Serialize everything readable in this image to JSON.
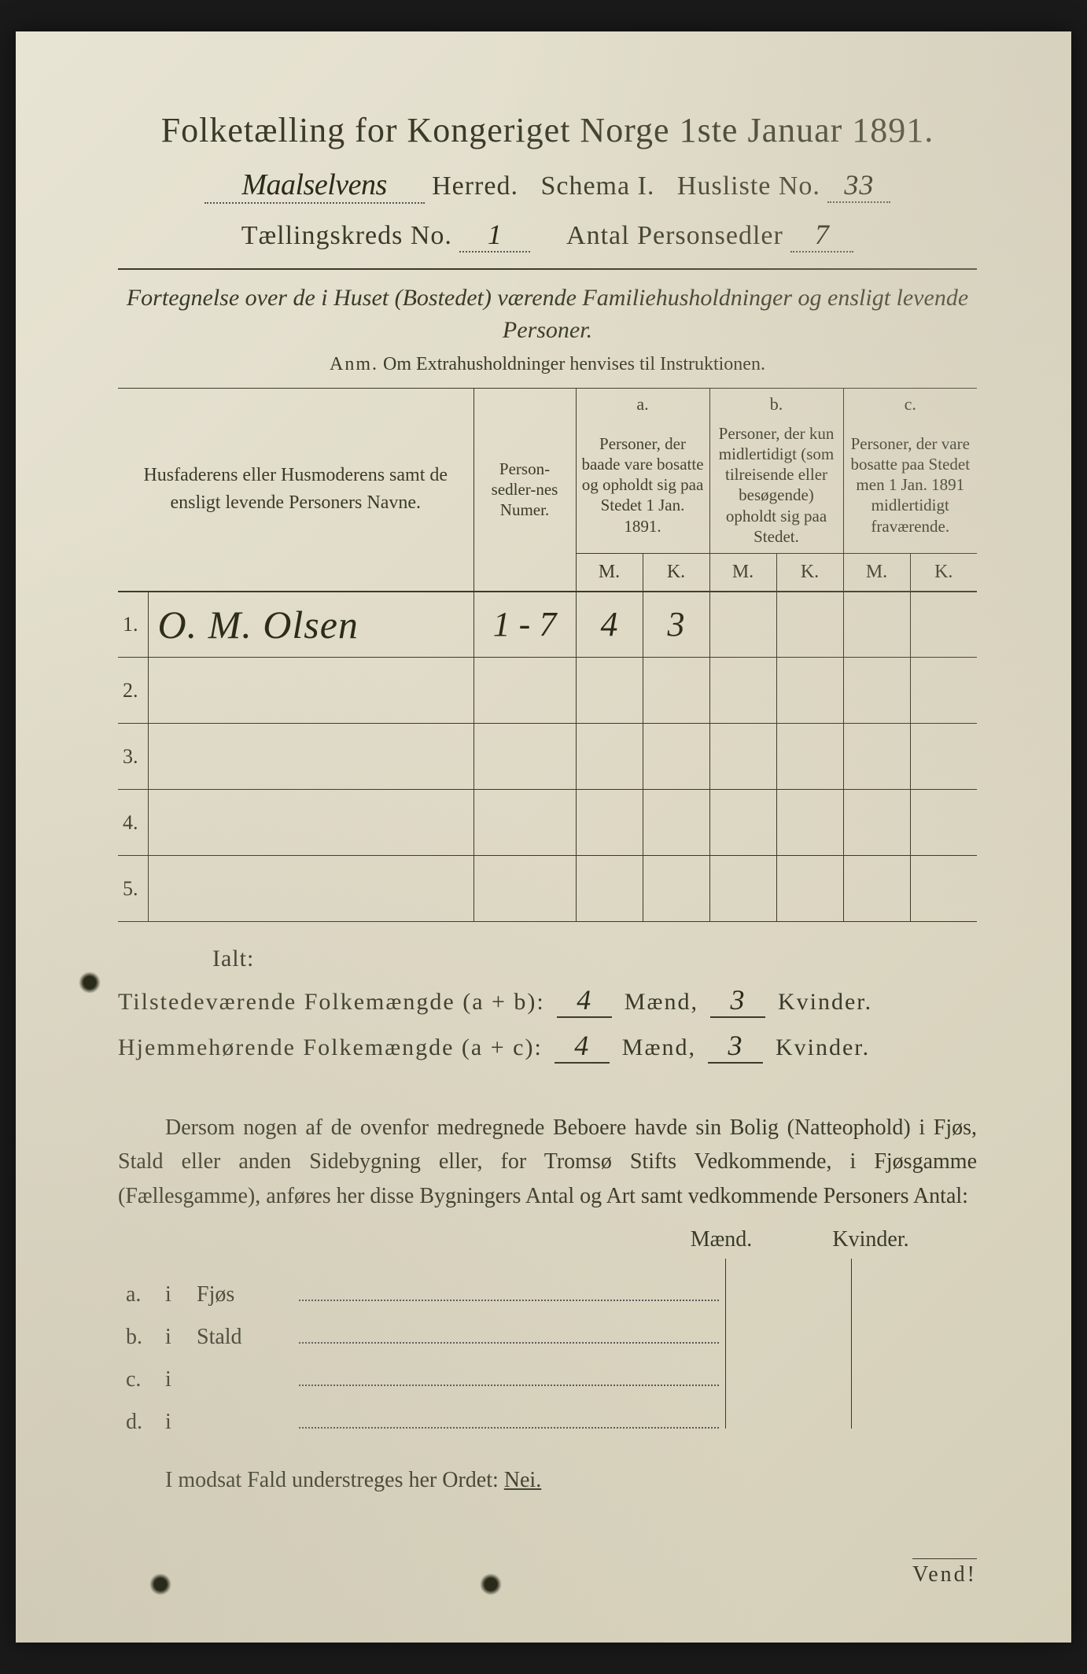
{
  "header": {
    "title": "Folketælling for Kongeriget Norge 1ste Januar 1891.",
    "herred_hw": "Maalselvens",
    "herred_label": "Herred.",
    "schema_label": "Schema I.",
    "husliste_label": "Husliste No.",
    "husliste_no": "33",
    "kreds_label": "Tællingskreds No.",
    "kreds_no": "1",
    "antal_label": "Antal Personsedler",
    "antal_no": "7"
  },
  "intro": {
    "line": "Fortegnelse over de i Huset (Bostedet) værende Familiehusholdninger og ensligt levende Personer.",
    "anm_label": "Anm.",
    "anm_text": "Om Extrahusholdninger henvises til Instruktionen."
  },
  "columns": {
    "name": "Husfaderens eller Husmoderens samt de ensligt levende Personers Navne.",
    "numer": "Person-sedler-nes Numer.",
    "a_label": "a.",
    "a_desc": "Personer, der baade vare bosatte og opholdt sig paa Stedet 1 Jan. 1891.",
    "b_label": "b.",
    "b_desc": "Personer, der kun midlertidigt (som tilreisende eller besøgende) opholdt sig paa Stedet.",
    "c_label": "c.",
    "c_desc": "Personer, der vare bosatte paa Stedet men 1 Jan. 1891 midlertidigt fraværende.",
    "m": "M.",
    "k": "K."
  },
  "rows": [
    {
      "n": "1.",
      "name": "O. M. Olsen",
      "numer": "1 - 7",
      "am": "4",
      "ak": "3",
      "bm": "",
      "bk": "",
      "cm": "",
      "ck": ""
    },
    {
      "n": "2.",
      "name": "",
      "numer": "",
      "am": "",
      "ak": "",
      "bm": "",
      "bk": "",
      "cm": "",
      "ck": ""
    },
    {
      "n": "3.",
      "name": "",
      "numer": "",
      "am": "",
      "ak": "",
      "bm": "",
      "bk": "",
      "cm": "",
      "ck": ""
    },
    {
      "n": "4.",
      "name": "",
      "numer": "",
      "am": "",
      "ak": "",
      "bm": "",
      "bk": "",
      "cm": "",
      "ck": ""
    },
    {
      "n": "5.",
      "name": "",
      "numer": "",
      "am": "",
      "ak": "",
      "bm": "",
      "bk": "",
      "cm": "",
      "ck": ""
    }
  ],
  "totals": {
    "ialt": "Ialt:",
    "line1_label": "Tilstedeværende Folkemængde (a + b):",
    "line2_label": "Hjemmehørende Folkemængde (a + c):",
    "maend": "Mænd,",
    "kvinder": "Kvinder.",
    "l1_m": "4",
    "l1_k": "3",
    "l2_m": "4",
    "l2_k": "3"
  },
  "para": "Dersom nogen af de ovenfor medregnede Beboere havde sin Bolig (Natteophold) i Fjøs, Stald eller anden Sidebygning eller, for Tromsø Stifts Vedkommende, i Fjøsgamme (Fællesgamme), anføres her disse Bygningers Antal og Art samt vedkommende Personers Antal:",
  "mkhead": {
    "m": "Mænd.",
    "k": "Kvinder."
  },
  "buildings": [
    {
      "l": "a.",
      "i": "i",
      "t": "Fjøs"
    },
    {
      "l": "b.",
      "i": "i",
      "t": "Stald"
    },
    {
      "l": "c.",
      "i": "i",
      "t": ""
    },
    {
      "l": "d.",
      "i": "i",
      "t": ""
    }
  ],
  "footer": {
    "text": "I modsat Fald understreges her Ordet:",
    "nei": "Nei.",
    "vend": "Vend!"
  },
  "style": {
    "page_bg": "#e0dbc8",
    "ink": "#3a3a2a",
    "hw_ink": "#2a2a1a",
    "title_fontsize": 44,
    "body_fontsize": 28
  }
}
